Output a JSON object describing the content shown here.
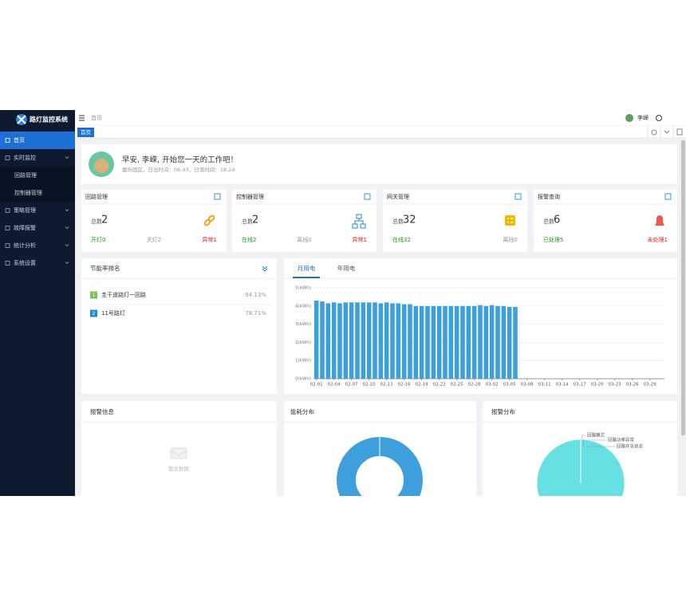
{
  "sidebar": {
    "title": "路灯监控系统",
    "menu": [
      {
        "label": "首页"
      },
      {
        "label": "实时监控",
        "children": [
          "回路管理",
          "控制器管理"
        ]
      },
      {
        "label": "策略管理"
      },
      {
        "label": "故障报警"
      },
      {
        "label": "统计分析"
      },
      {
        "label": "系统设置"
      }
    ]
  },
  "header": {
    "breadcrumb": "首页",
    "user": "李嵘",
    "tab": "首页"
  },
  "welcome": {
    "greeting": "早安, 李嵘, 开始您一天的工作吧！",
    "info": "嘉圻园区，日出时间：06:43，日落时间：18:24"
  },
  "stats": [
    {
      "title": "回路管理",
      "total_label": "总数",
      "total": 2,
      "items": [
        {
          "text": "开灯0",
          "color": "#1a9a1a"
        },
        {
          "text": "关灯2",
          "color": "#999999"
        },
        {
          "text": "异常1",
          "color": "#e02020"
        }
      ]
    },
    {
      "title": "控制器管理",
      "total_label": "总数",
      "total": 2,
      "items": [
        {
          "text": "在线2",
          "color": "#1a9a1a"
        },
        {
          "text": "离线0",
          "color": "#999999"
        },
        {
          "text": "异常1",
          "color": "#e02020"
        }
      ]
    },
    {
      "title": "网关管理",
      "total_label": "总数",
      "total": 32,
      "items": [
        {
          "text": "在线32",
          "color": "#1a9a1a"
        },
        {
          "text": "离线0",
          "color": "#999999"
        }
      ]
    },
    {
      "title": "报警查询",
      "total_label": "总数",
      "total": 6,
      "items": [
        {
          "text": "已处理5",
          "color": "#1a9a1a"
        },
        {
          "text": "未处理1",
          "color": "#e02020"
        }
      ]
    }
  ],
  "ranking": {
    "title": "节能率排名",
    "items": [
      {
        "rank": 1,
        "name": "圭干道路灯一回路",
        "value": "94.13%",
        "color": "#7cc35b"
      },
      {
        "rank": 2,
        "name": "11号路灯",
        "value": "78.71%",
        "color": "#1f8ad6"
      }
    ]
  },
  "energy_chart": {
    "tabs": [
      "月用电",
      "年用电"
    ]
  },
  "alarm_info": {
    "title": "报警信息",
    "empty": "暂无数据"
  },
  "energy_dist": {
    "title": "能耗分布"
  },
  "alarm_dist": {
    "title": "报警分布"
  },
  "chart_data": [
    {
      "type": "bar",
      "categories": [
        "02-01",
        null,
        null,
        "02-04",
        null,
        null,
        "02-07",
        null,
        null,
        "02-10",
        null,
        null,
        "02-13",
        null,
        null,
        "02-16",
        null,
        null,
        "02-19",
        null,
        null,
        "02-22",
        null,
        null,
        "02-25",
        null,
        null,
        "02-28",
        null,
        null,
        "03-02",
        null,
        null,
        "03-05",
        null,
        null,
        "03-08",
        null,
        null,
        "03-11",
        null,
        null,
        "03-14",
        null,
        null,
        "03-17",
        null,
        null,
        "03-20",
        null,
        null,
        "03-23",
        null,
        null,
        "03-26",
        null,
        null,
        "03-29",
        null,
        null
      ],
      "values": [
        4.3,
        4.25,
        4.15,
        4.2,
        4.15,
        4.2,
        4.2,
        4.2,
        4.2,
        4.2,
        4.2,
        4.15,
        4.2,
        4.15,
        4.15,
        4.1,
        4.1,
        4.0,
        4.0,
        4.0,
        4.0,
        4.0,
        4.0,
        4.0,
        4.0,
        4.0,
        4.0,
        4.0,
        4.05,
        4.0,
        4.05,
        4.0,
        4.0,
        3.95,
        3.95,
        null,
        null,
        null,
        null,
        null,
        null,
        null,
        null,
        null,
        null,
        null,
        null,
        null,
        null,
        null,
        null,
        null,
        null,
        null,
        null,
        null,
        null,
        null,
        null,
        null
      ],
      "color": "#3d9fdb",
      "ylim": [
        0,
        5
      ],
      "yticks": [
        {
          "value": 0,
          "label": "0(kWh)"
        },
        {
          "value": 1,
          "label": "1(kWh)"
        },
        {
          "value": 2,
          "label": "2(kWh)"
        },
        {
          "value": 3,
          "label": "3(kWh)"
        },
        {
          "value": 4,
          "label": "4(kWh)"
        },
        {
          "value": 5,
          "label": "5(kWh)"
        }
      ],
      "grid": true
    },
    {
      "type": "pie",
      "categories": [
        "回路模式",
        "回路功率异常",
        "回路开关状态"
      ],
      "values": [
        0,
        0,
        6
      ],
      "colors": [
        "#3d9fdb",
        "#f5a623",
        "#67e0e3"
      ]
    }
  ]
}
